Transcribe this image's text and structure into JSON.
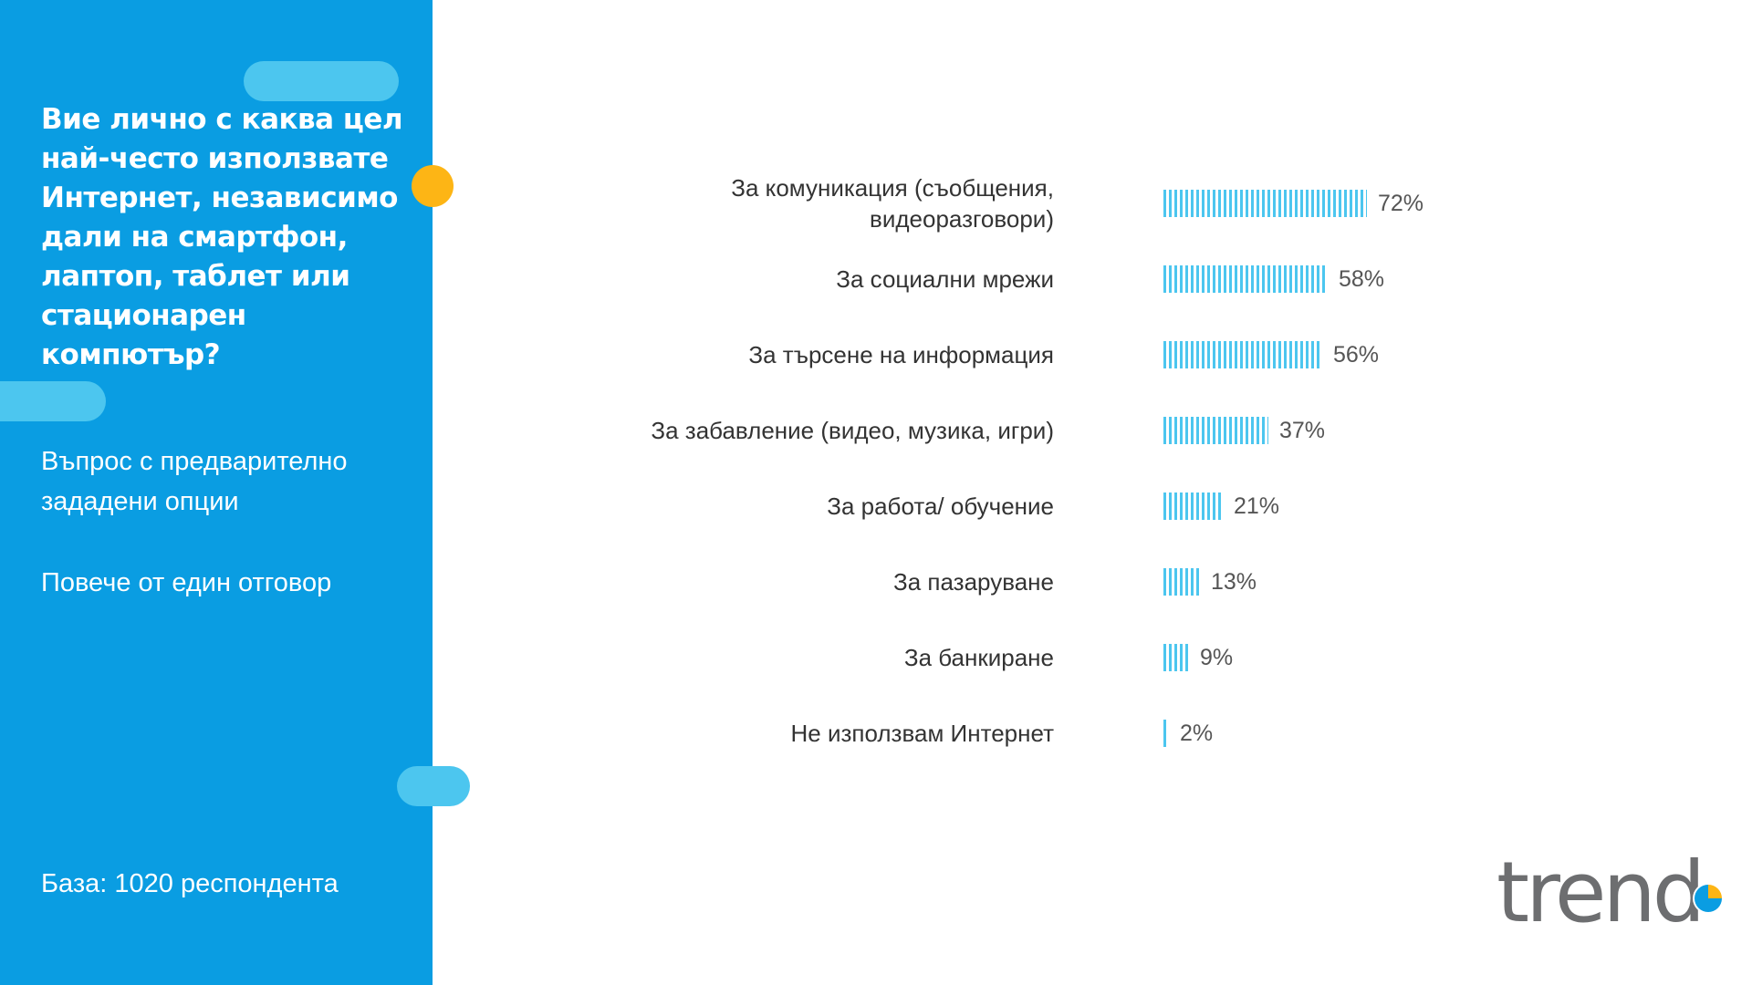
{
  "sidebar": {
    "question": "Вие лично с каква цел най-често използвате Интернет, независимо дали на смартфон, лаптоп, таблет или стационарен компютър?",
    "note_1": "Въпрос с предварително зададени опции",
    "note_2": "Повече от един отговор",
    "base": "База:  1020 респондента"
  },
  "logo": {
    "text": "trend"
  },
  "colors": {
    "sidebar": "#0a9de2",
    "accent_pill": "#4cc6ef",
    "dot": "#fdb515",
    "bar": "#4cc6ef"
  },
  "chart_data": {
    "type": "bar",
    "orientation": "horizontal",
    "categories": [
      "За комуникация (съобщения, видеоразговори)",
      "За социални мрежи",
      "За търсене на информация",
      "За забавление (видео, музика, игри)",
      "За работа/ обучение",
      "За пазаруване",
      "За банкиране",
      "Не използвам Интернет"
    ],
    "values": [
      72,
      58,
      56,
      37,
      21,
      13,
      9,
      2
    ],
    "value_labels": [
      "72%",
      "58%",
      "56%",
      "37%",
      "21%",
      "13%",
      "9%",
      "2%"
    ],
    "unit": "%",
    "xlim": [
      0,
      100
    ],
    "grid": false,
    "legend": "none"
  }
}
